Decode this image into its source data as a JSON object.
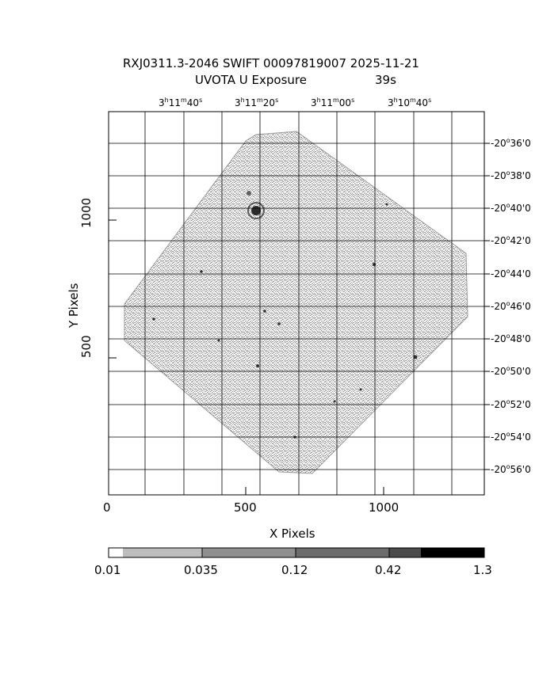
{
  "header": {
    "title": "RXJ0311.3-2046 SWIFT 00097819007 2025-11-21",
    "subtitle_left": "UVOTA U Exposure",
    "subtitle_right": "39s"
  },
  "axes": {
    "xlabel": "X Pixels",
    "ylabel": "Y Pixels",
    "x_ticks": [
      "0",
      "500",
      "1000"
    ],
    "y_ticks": [
      "500",
      "1000"
    ]
  },
  "ra_ticks": [
    {
      "h": "3",
      "m": "11",
      "s": "40"
    },
    {
      "h": "3",
      "m": "11",
      "s": "20"
    },
    {
      "h": "3",
      "m": "11",
      "s": "00"
    },
    {
      "h": "3",
      "m": "10",
      "s": "40"
    }
  ],
  "dec_ticks": [
    {
      "d": "-20",
      "m": "36",
      "s": "0"
    },
    {
      "d": "-20",
      "m": "38",
      "s": "0"
    },
    {
      "d": "-20",
      "m": "40",
      "s": "0"
    },
    {
      "d": "-20",
      "m": "42",
      "s": "0"
    },
    {
      "d": "-20",
      "m": "44",
      "s": "0"
    },
    {
      "d": "-20",
      "m": "46",
      "s": "0"
    },
    {
      "d": "-20",
      "m": "48",
      "s": "0"
    },
    {
      "d": "-20",
      "m": "50",
      "s": "0"
    },
    {
      "d": "-20",
      "m": "52",
      "s": "0"
    },
    {
      "d": "-20",
      "m": "54",
      "s": "0"
    },
    {
      "d": "-20",
      "m": "56",
      "s": "0"
    }
  ],
  "colorbar": {
    "labels": [
      "0.01",
      "0.035",
      "0.12",
      "0.42",
      "1.3"
    ],
    "colors": [
      "#ffffff",
      "#bdbdbd",
      "#8f8f8f",
      "#6c6c6c",
      "#4b4b4b",
      "#000000"
    ]
  },
  "image": {
    "background": "#ffffff",
    "field_color": "#8a8a8a"
  }
}
